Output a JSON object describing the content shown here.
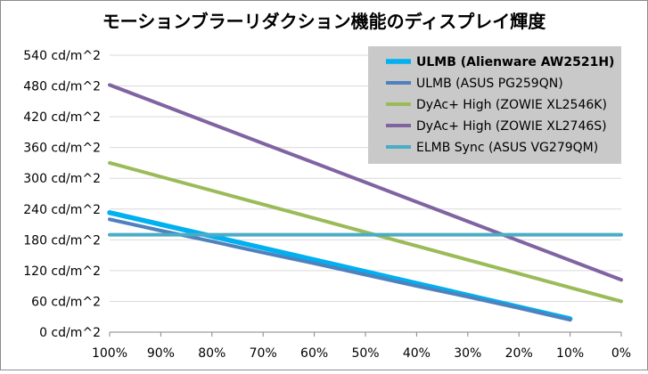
{
  "chart_data": {
    "type": "line",
    "title": "モーションブラーリダクション機能のディスプレイ輝度",
    "xlabel": "",
    "ylabel": "",
    "categories": [
      "100%",
      "90%",
      "80%",
      "70%",
      "60%",
      "50%",
      "40%",
      "30%",
      "20%",
      "10%",
      "0%"
    ],
    "y_ticks": [
      "0 cd/m^2",
      "60 cd/m^2",
      "120 cd/m^2",
      "180 cd/m^2",
      "240 cd/m^2",
      "300 cd/m^2",
      "360 cd/m^2",
      "420 cd/m^2",
      "480 cd/m^2",
      "540 cd/m^2"
    ],
    "ylim": [
      0,
      540
    ],
    "grid": true,
    "legend_position": "top-right",
    "series": [
      {
        "name": "ULMB (Alienware AW2521H)",
        "color": "#00b0f0",
        "bold": true,
        "values": [
          233,
          210,
          187,
          164,
          141,
          118,
          95,
          72,
          49,
          26,
          null
        ]
      },
      {
        "name": "ULMB (ASUS PG259QN)",
        "color": "#4f81bd",
        "bold": false,
        "values": [
          220,
          198,
          177,
          155,
          134,
          112,
          90,
          69,
          47,
          24,
          null
        ]
      },
      {
        "name": "DyAc+ High (ZOWIE XL2546K)",
        "color": "#9bbb59",
        "bold": false,
        "values": [
          330,
          303,
          276,
          249,
          222,
          195,
          168,
          141,
          114,
          87,
          60
        ]
      },
      {
        "name": "DyAc+ High (ZOWIE XL2746S)",
        "color": "#8064a2",
        "bold": false,
        "values": [
          482,
          444,
          406,
          368,
          330,
          292,
          254,
          216,
          178,
          140,
          102
        ]
      },
      {
        "name": "ELMB Sync (ASUS VG279QM)",
        "color": "#4bacc6",
        "bold": false,
        "values": [
          190,
          190,
          190,
          190,
          190,
          190,
          190,
          190,
          190,
          190,
          190
        ]
      }
    ]
  }
}
